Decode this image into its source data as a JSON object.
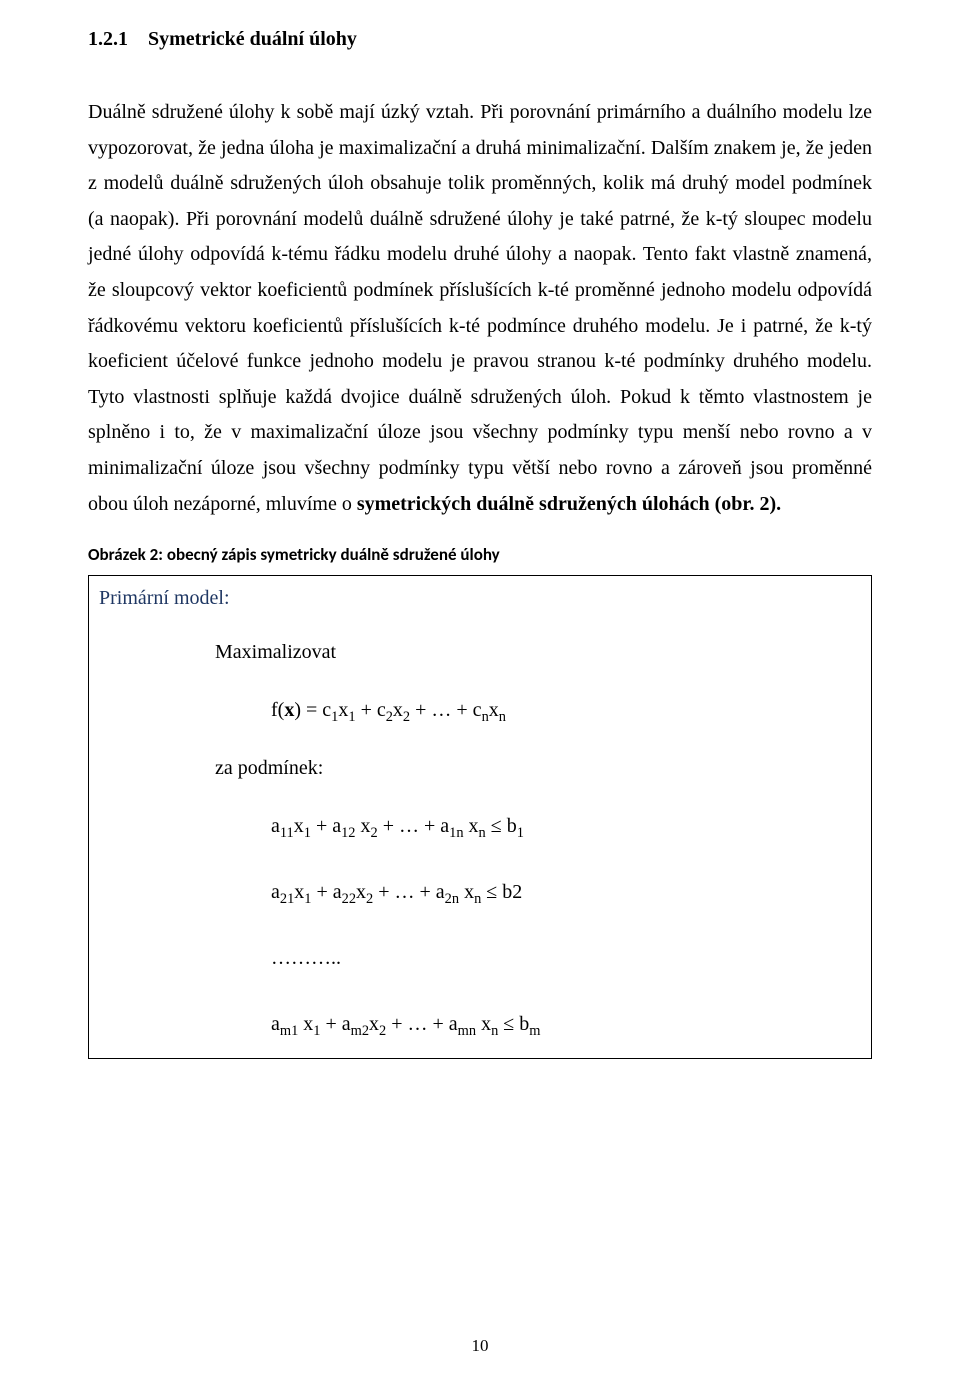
{
  "heading": {
    "number": "1.2.1",
    "title": "Symetrické duální úlohy"
  },
  "paragraph": "Duálně sdružené úlohy k sobě mají úzký vztah. Při porovnání primárního a duálního modelu lze vypozorovat, že jedna úloha je maximalizační a druhá minimalizační. Dalším znakem je, že jeden z modelů duálně sdružených úloh obsahuje tolik proměnných, kolik má druhý model podmínek (a naopak). Při porovnání modelů duálně sdružené úlohy je také patrné, že k-tý sloupec modelu jedné úlohy odpovídá k-tému řádku modelu druhé úlohy a naopak. Tento fakt vlastně znamená, že sloupcový vektor koeficientů podmínek příslušících k-té proměnné jednoho modelu odpovídá řádkovému vektoru koeficientů příslušících k-té podmínce druhého modelu. Je i patrné, že k-tý koeficient účelové funkce jednoho modelu je pravou stranou k-té podmínky druhého modelu. Tyto vlastnosti splňuje každá dvojice duálně sdružených úloh. Pokud k těmto vlastnostem je splněno i to, že v maximalizační úloze jsou všechny podmínky typu menší nebo rovno a v minimalizační úloze jsou všechny podmínky typu větší nebo rovno a zároveň jsou proměnné obou úloh nezáporné, mluvíme o ",
  "paragraph_bold_tail": "symetrických duálně sdružených úlohách (obr. 2).",
  "figure": {
    "caption": "Obrázek 2: obecný zápis symetricky duálně sdružené úlohy",
    "primal_label": "Primární model:",
    "maximize_label": "Maximalizovat",
    "objective_html": "f(<b>x</b>) = c<sub>1</sub>x<sub>1</sub>  +  c<sub>2</sub>x<sub>2</sub>  + … + c<sub>n</sub>x<sub>n</sub>",
    "constraints_label": "za podmínek:",
    "constraints_html": [
      "a<sub>11</sub>x<sub>1</sub> + a<sub>12</sub> x<sub>2</sub> + …  + a<sub>1n</sub> x<sub>n</sub>   ≤   b<sub>1</sub>",
      "a<sub>21</sub>x<sub>1</sub> + a<sub>22</sub>x<sub>2</sub>  + …  + a<sub>2n</sub> x<sub>n</sub>   ≤   b2",
      "………..",
      "a<sub>m1</sub> x<sub>1</sub> + a<sub>m2</sub>x<sub>2</sub> + …  + a<sub>mn</sub> x<sub>n</sub>   ≤   b<sub>m</sub>"
    ]
  },
  "page_number": "10",
  "colors": {
    "primal_label": "#1f3763",
    "text": "#000000",
    "background": "#ffffff"
  }
}
